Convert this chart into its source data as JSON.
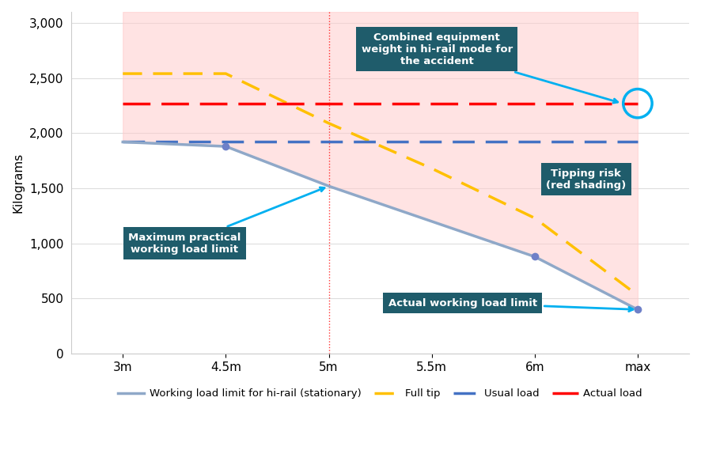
{
  "x_positions": [
    0,
    1,
    2,
    3,
    4,
    5
  ],
  "x_labels": [
    "3m",
    "4.5m",
    "5m",
    "5.5m",
    "6m",
    "max"
  ],
  "wll_line": [
    1920,
    1880,
    1520,
    1200,
    880,
    400
  ],
  "full_tip_line": [
    2540,
    2540,
    2090,
    1680,
    1230,
    530
  ],
  "usual_load_line": [
    1920,
    1920,
    1920,
    1920,
    1920,
    1920
  ],
  "actual_load_line": [
    2270,
    2270,
    2270,
    2270,
    2270,
    2270
  ],
  "ylim": [
    0,
    3100
  ],
  "yticks": [
    0,
    500,
    1000,
    1500,
    2000,
    2500,
    3000
  ],
  "ytick_labels": [
    "0",
    "500",
    "1,000",
    "1,500",
    "2,000",
    "2,500",
    "3,000"
  ],
  "ylabel": "Kilograms",
  "wll_color": "#8FA8C8",
  "full_tip_color": "#FFC000",
  "usual_load_color": "#4472C4",
  "actual_load_color": "#FF0000",
  "fill_color": "#FFCCCC",
  "fill_alpha": 0.55,
  "vline_x": 2,
  "vline_color": "#FF0000",
  "annotation_box_color": "#1F5C6B",
  "annotation_text_color": "#FFFFFF",
  "circle_color": "#00B0F0",
  "marker_color": "#6E80C8",
  "marker_size": 7,
  "xlim_left": -0.5,
  "xlim_right": 5.5
}
